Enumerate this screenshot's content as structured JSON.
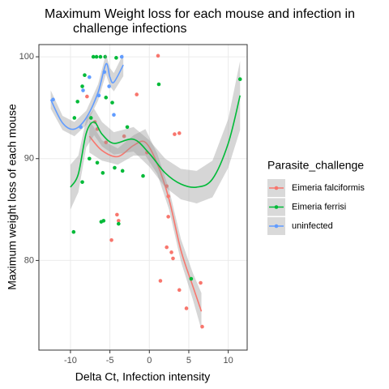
{
  "chart_data": {
    "type": "scatter",
    "title": "Maximum Weight loss for each mouse and infection in",
    "subtitle": "challenge infections",
    "x_label": "Delta Ct, Infection intensity",
    "y_label": "Maximum weight loss of each mouse",
    "legend_title": "Parasite_challenge",
    "legend_position": "right",
    "grid": true,
    "xlim": [
      -14,
      12.4
    ],
    "xticks": [
      -10,
      -5,
      0,
      5,
      10
    ],
    "ylim": [
      71.2,
      101.2
    ],
    "yticks": [
      80,
      90,
      100
    ],
    "series": [
      {
        "name": "Eimeria falciformis",
        "color": "#F8766D",
        "x": [
          -7.9,
          1.1,
          -1.6,
          3.2,
          3.8,
          -4.1,
          -3.9,
          -4.8,
          2.2,
          2.4,
          2.4,
          2.2,
          2.8,
          3.0,
          1.4,
          3.8,
          4.7,
          6.7,
          6.5,
          -6.9,
          -6.6,
          -5.5,
          -3.2,
          -0.3
        ],
        "values": [
          96.1,
          100.1,
          96.3,
          92.4,
          92.5,
          84.5,
          83.9,
          82.0,
          87.3,
          86.3,
          84.3,
          81.3,
          80.8,
          80.2,
          78.0,
          77.1,
          75.3,
          73.5,
          77.8,
          93.6,
          92.9,
          91.6,
          92.2,
          90.6
        ],
        "smooth": {
          "x": [
            -7.6,
            -6,
            -4,
            -2,
            -0.5,
            1,
            2.5,
            4,
            5.5,
            6.6
          ],
          "values": [
            92.2,
            90.8,
            90.2,
            91.3,
            91.6,
            89.5,
            86,
            81,
            77.5,
            75
          ],
          "se": [
            1.6,
            1.0,
            0.8,
            1.0,
            1.3,
            1.0,
            1.0,
            1.1,
            1.3,
            1.8
          ]
        }
      },
      {
        "name": "Eimeria ferrisi",
        "color": "#00BA38",
        "x": [
          -7.1,
          -6.7,
          -6.2,
          -5.6,
          -4.2,
          -8.2,
          -8.5,
          -9.1,
          1.2,
          -2.8,
          -7.4,
          -9.5,
          -9.6,
          -6.1,
          -5.8,
          -3.9,
          -7.6,
          -5.9,
          -8.5,
          -6.6,
          -4.4,
          -3.4,
          -0.8,
          5.3,
          11.5,
          -4.7,
          -5.5
        ],
        "values": [
          100,
          100,
          100,
          100,
          99.9,
          98.2,
          97.1,
          95.6,
          97.3,
          93.1,
          94.0,
          94.0,
          82.8,
          83.8,
          83.9,
          83.6,
          90.0,
          88.6,
          87.7,
          89.6,
          89.1,
          88.8,
          88.3,
          78.2,
          97.8,
          95.5,
          96.0
        ],
        "smooth": {
          "x": [
            -10,
            -9,
            -8,
            -7,
            -6,
            -4.5,
            -2,
            0,
            2,
            4,
            6,
            8,
            10,
            11.5
          ],
          "values": [
            87.2,
            88.5,
            92.5,
            93.6,
            92.4,
            91.5,
            91.9,
            90.5,
            88.6,
            87.5,
            87.2,
            88,
            91.5,
            96.2
          ],
          "se": [
            2.2,
            1.8,
            1.4,
            1.3,
            1.2,
            1.1,
            1.2,
            1.3,
            1.4,
            1.5,
            1.6,
            1.8,
            2.4,
            3.4
          ]
        }
      },
      {
        "name": "uninfected",
        "color": "#619CFF",
        "x": [
          -12.2,
          -8.7,
          -3.5,
          -7.6,
          -5.1,
          -6.4,
          -4.5,
          -5.7,
          -8.4
        ],
        "values": [
          95.8,
          93.1,
          100,
          98.0,
          97.1,
          96.2,
          94.3,
          98.5,
          96.7
        ],
        "smooth": {
          "x": [
            -12.5,
            -11,
            -9.5,
            -8,
            -6.5,
            -5.5,
            -5,
            -4.5,
            -3.3
          ],
          "values": [
            95.8,
            93.5,
            92.9,
            94,
            96.5,
            99.3,
            98,
            97.5,
            99.2
          ],
          "se": [
            0.9,
            0.7,
            0.7,
            0.7,
            0.8,
            1.0,
            0.9,
            0.9,
            1.1
          ]
        }
      }
    ]
  }
}
